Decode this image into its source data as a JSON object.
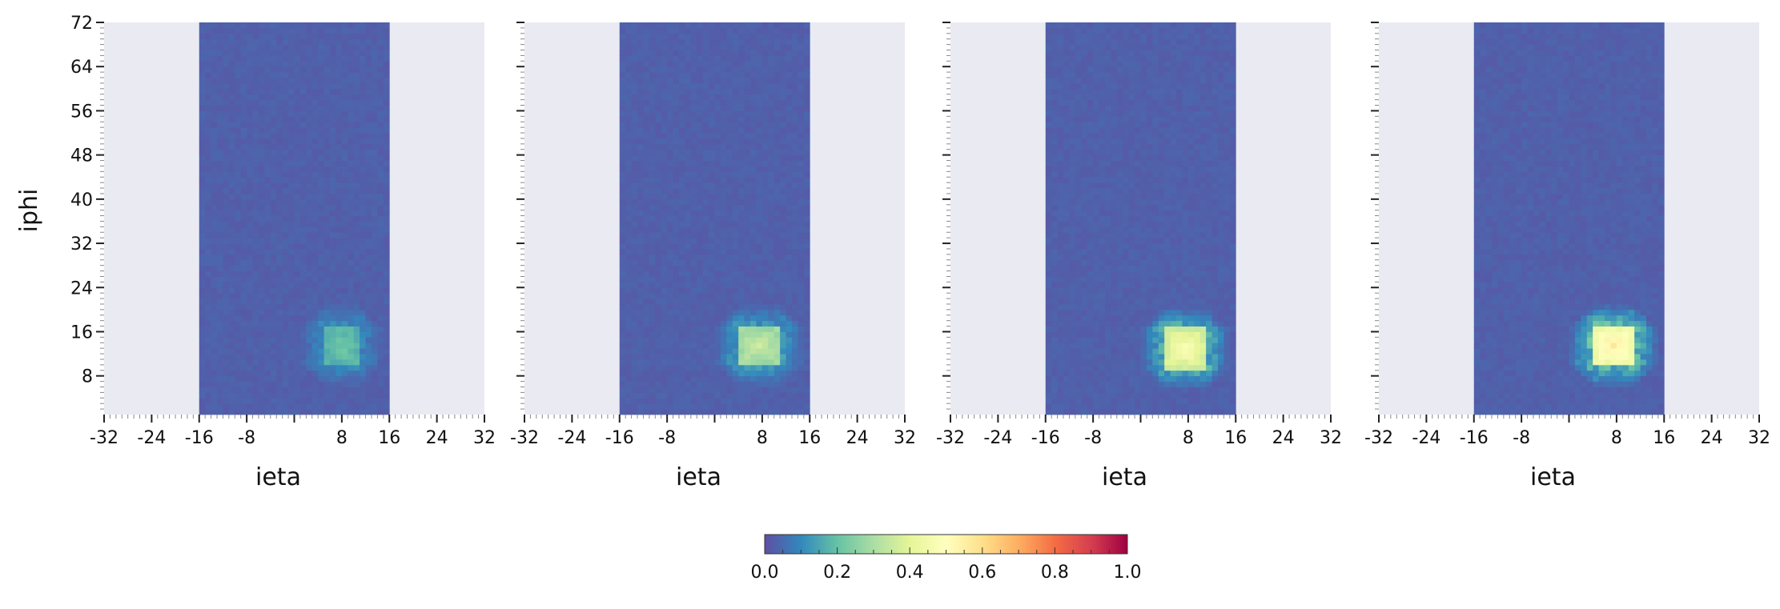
{
  "chart_data": {
    "type": "heatmap",
    "panels": [
      {
        "name": "panel-1",
        "xlabel": "ieta",
        "ylabel": "iphi",
        "xlim": [
          -32,
          32
        ],
        "ylim": [
          1,
          72
        ],
        "x_ticks": [
          "-32",
          "-24",
          "-16",
          "-8",
          "8",
          "16",
          "24",
          "32"
        ],
        "y_ticks": [
          "8",
          "16",
          "24",
          "32",
          "40",
          "48",
          "56",
          "64",
          "72"
        ],
        "data_region": {
          "ieta": [
            -16,
            16
          ],
          "iphi": [
            1,
            72
          ],
          "background_value": 0.03
        },
        "hotspot": {
          "ieta_center": 8.0,
          "iphi_center": 13.5,
          "half_width_ieta": 3,
          "half_width_iphi": 3.5,
          "peak": 0.22,
          "halo": 0.07
        }
      },
      {
        "name": "panel-2",
        "xlabel": "ieta",
        "ylabel": "",
        "xlim": [
          -32,
          32
        ],
        "ylim": [
          1,
          72
        ],
        "x_ticks": [
          "-32",
          "-24",
          "-16",
          "-8",
          "8",
          "16",
          "24",
          "32"
        ],
        "y_ticks": [],
        "data_region": {
          "ieta": [
            -16,
            16
          ],
          "iphi": [
            1,
            72
          ],
          "background_value": 0.03
        },
        "hotspot": {
          "ieta_center": 7.5,
          "iphi_center": 13.5,
          "half_width_ieta": 3.5,
          "half_width_iphi": 3.5,
          "peak": 0.36,
          "halo": 0.1
        }
      },
      {
        "name": "panel-3",
        "xlabel": "ieta",
        "ylabel": "",
        "xlim": [
          -32,
          32
        ],
        "ylim": [
          1,
          72
        ],
        "x_ticks": [
          "-32",
          "-24",
          "-16",
          "-8",
          "8",
          "16",
          "24",
          "32"
        ],
        "y_ticks": [],
        "data_region": {
          "ieta": [
            -16,
            16
          ],
          "iphi": [
            1,
            72
          ],
          "background_value": 0.03
        },
        "hotspot": {
          "ieta_center": 7.5,
          "iphi_center": 13.0,
          "half_width_ieta": 3.5,
          "half_width_iphi": 3.5,
          "peak": 0.48,
          "halo": 0.14
        }
      },
      {
        "name": "panel-4",
        "xlabel": "ieta",
        "ylabel": "",
        "xlim": [
          -32,
          32
        ],
        "ylim": [
          1,
          72
        ],
        "x_ticks": [
          "-32",
          "-24",
          "-16",
          "-8",
          "8",
          "16",
          "24",
          "32"
        ],
        "y_ticks": [],
        "data_region": {
          "ieta": [
            -16,
            16
          ],
          "iphi": [
            1,
            72
          ],
          "background_value": 0.03
        },
        "hotspot": {
          "ieta_center": 7.5,
          "iphi_center": 13.5,
          "half_width_ieta": 3.5,
          "half_width_iphi": 3.5,
          "peak": 0.56,
          "halo": 0.16
        }
      }
    ],
    "colorbar": {
      "range": [
        0,
        1
      ],
      "ticks": [
        "0.0",
        "0.2",
        "0.4",
        "0.6",
        "0.8",
        "1.0"
      ],
      "colormap": "Spectral_r",
      "colormap_stops": [
        "#5e4fa2",
        "#3288bd",
        "#66c2a5",
        "#abdda4",
        "#e6f598",
        "#ffffbf",
        "#fee08b",
        "#fdae61",
        "#f46d43",
        "#d53e4f",
        "#9e0142"
      ]
    },
    "plot_background": "#eaeaf2",
    "grid": false,
    "legend": "none"
  }
}
